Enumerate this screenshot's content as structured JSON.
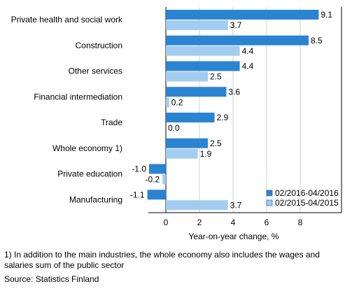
{
  "chart_data": {
    "type": "bar",
    "orientation": "horizontal",
    "categories": [
      "Private health and social work",
      "Construction",
      "Other services",
      "Financial intermediation",
      "Trade",
      "Whole economy 1)",
      "Private education",
      "Manufacturing"
    ],
    "series": [
      {
        "name": "02/2016-04/2016",
        "color": "#2b84d2",
        "values": [
          9.1,
          8.5,
          4.4,
          3.6,
          2.9,
          2.5,
          -1.0,
          -1.1
        ]
      },
      {
        "name": "02/2015-04/2015",
        "color": "#a3cdf0",
        "values": [
          3.7,
          4.4,
          2.5,
          0.2,
          0.0,
          1.9,
          -0.2,
          3.7
        ]
      }
    ],
    "value_labels": [
      [
        "9.1",
        "8.5",
        "4.4",
        "3.6",
        "2.9",
        "2.5",
        "-1.0",
        "-1.1"
      ],
      [
        "3.7",
        "4.4",
        "2.5",
        "0.2",
        "0.0",
        "1.9",
        "-0.2",
        "3.7"
      ]
    ],
    "xlabel": "Year-on-year change, %",
    "xlim": [
      -1.2,
      10.4
    ],
    "xticks": [
      0,
      2,
      4,
      6,
      8
    ],
    "xtick_labels": [
      "0",
      "2",
      "4",
      "6",
      "8"
    ],
    "grid": true,
    "legend_position": "bottom-right"
  },
  "footnote": "1) In addition to the main industries, the whole economy also includes the wages and salaries sum of the public sector",
  "source": "Source: Statistics Finland"
}
